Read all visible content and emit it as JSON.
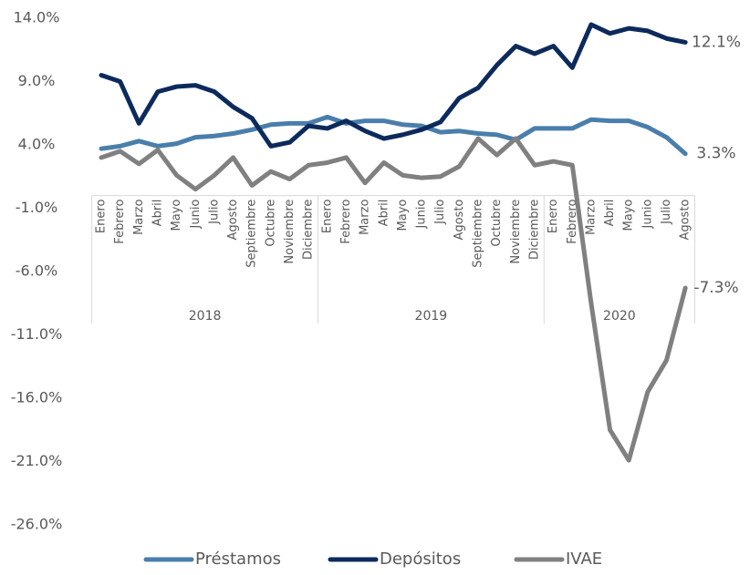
{
  "chart_data": {
    "type": "line",
    "categories": [
      "Enero",
      "Febrero",
      "Marzo",
      "Abril",
      "Mayo",
      "Junio",
      "Julio",
      "Agosto",
      "Septiembre",
      "Octubre",
      "Noviembre",
      "Diciembre",
      "Enero",
      "Febrero",
      "Marzo",
      "Abril",
      "Mayo",
      "Junio",
      "Julio",
      "Agosto",
      "Septiembre",
      "Octubre",
      "Noviembre",
      "Diciembre",
      "Enero",
      "Febrero",
      "Marzo",
      "Abril",
      "Mayo",
      "Junio",
      "Julio",
      "Agosto"
    ],
    "category_years": [
      "2018",
      "2018",
      "2018",
      "2018",
      "2018",
      "2018",
      "2018",
      "2018",
      "2018",
      "2018",
      "2018",
      "2018",
      "2019",
      "2019",
      "2019",
      "2019",
      "2019",
      "2019",
      "2019",
      "2019",
      "2019",
      "2019",
      "2019",
      "2019",
      "2020",
      "2020",
      "2020",
      "2020",
      "2020",
      "2020",
      "2020",
      "2020"
    ],
    "series": [
      {
        "name": "Préstamos",
        "color": "#4a7eab",
        "values": [
          3.7,
          3.9,
          4.3,
          3.9,
          4.1,
          4.6,
          4.7,
          4.9,
          5.2,
          5.6,
          5.7,
          5.7,
          6.2,
          5.7,
          5.9,
          5.9,
          5.6,
          5.5,
          5.0,
          5.1,
          4.9,
          4.8,
          4.4,
          5.3,
          5.3,
          5.3,
          6.0,
          5.9,
          5.9,
          5.4,
          4.6,
          3.3
        ],
        "value_labels": [
          null,
          null,
          null,
          null,
          null,
          null,
          null,
          null,
          null,
          null,
          null,
          null,
          null,
          null,
          null,
          null,
          null,
          null,
          null,
          null,
          null,
          null,
          null,
          null,
          null,
          null,
          null,
          null,
          null,
          null,
          null,
          "3.3%"
        ]
      },
      {
        "name": "Depósitos",
        "color": "#0c2a5b",
        "values": [
          9.5,
          9.0,
          5.7,
          8.2,
          8.6,
          8.7,
          8.2,
          7.0,
          6.1,
          3.9,
          4.2,
          5.5,
          5.3,
          5.9,
          5.1,
          4.5,
          4.8,
          5.2,
          5.8,
          7.7,
          8.5,
          10.3,
          11.8,
          11.2,
          11.8,
          10.1,
          13.5,
          12.8,
          13.2,
          13.0,
          12.4,
          12.1
        ],
        "value_labels": [
          null,
          null,
          null,
          null,
          null,
          null,
          null,
          null,
          null,
          null,
          null,
          null,
          null,
          null,
          null,
          null,
          null,
          null,
          null,
          null,
          null,
          null,
          null,
          null,
          null,
          null,
          null,
          null,
          null,
          null,
          null,
          "12.1%"
        ]
      },
      {
        "name": "IVAE",
        "color": "#808080",
        "values": [
          3.0,
          3.5,
          2.5,
          3.6,
          1.6,
          0.5,
          1.6,
          3.0,
          0.8,
          1.9,
          1.3,
          2.4,
          2.6,
          3.0,
          1.0,
          2.6,
          1.6,
          1.4,
          1.5,
          2.3,
          4.5,
          3.2,
          4.5,
          2.4,
          2.7,
          2.4,
          -8.5,
          -18.5,
          -20.9,
          -15.5,
          -13.0,
          -7.3
        ],
        "value_labels": [
          null,
          null,
          null,
          null,
          null,
          null,
          null,
          null,
          null,
          null,
          null,
          null,
          null,
          null,
          null,
          null,
          null,
          null,
          null,
          null,
          null,
          null,
          null,
          null,
          null,
          null,
          null,
          null,
          null,
          null,
          null,
          "-7.3%"
        ]
      }
    ],
    "ylim": [
      -26,
      14
    ],
    "yticks": [
      {
        "value": 14,
        "label": "14.0%"
      },
      {
        "value": 9,
        "label": "9.0%"
      },
      {
        "value": 4,
        "label": "4.0%"
      },
      {
        "value": -1,
        "label": "-1.0%"
      },
      {
        "value": -6,
        "label": "-6.0%"
      },
      {
        "value": -11,
        "label": "-11.0%"
      },
      {
        "value": -16,
        "label": "-16.0%"
      },
      {
        "value": -21,
        "label": "-21.0%"
      },
      {
        "value": -26,
        "label": "-26.0%"
      }
    ],
    "grid": false,
    "legend": "bottom"
  }
}
